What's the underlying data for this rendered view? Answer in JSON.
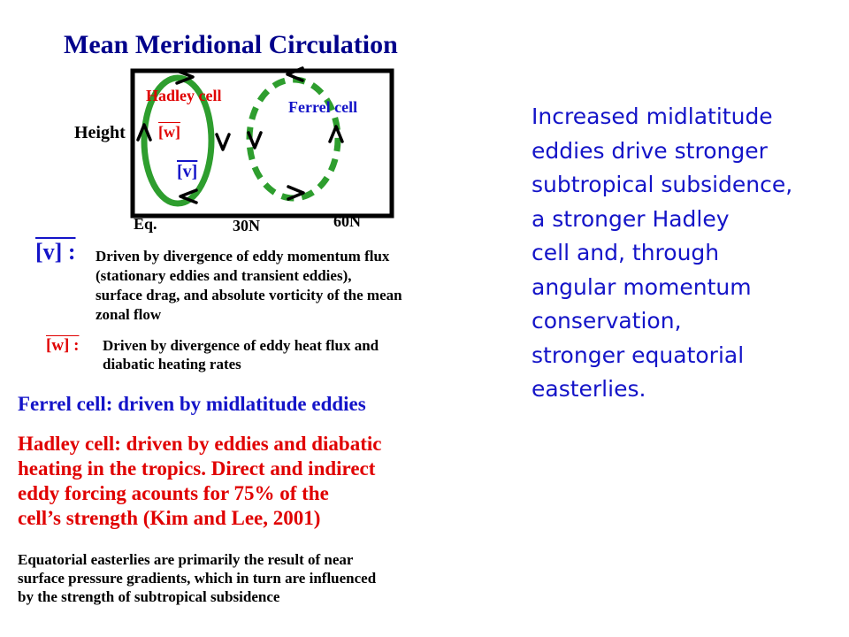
{
  "title": "Mean Meridional Circulation",
  "diagram": {
    "hadley_label": "Hadley cell",
    "ferrel_label": "Ferrel cell",
    "height_label": "Height",
    "w_symbol": "[w]",
    "v_symbol": "[v]",
    "x_labels": {
      "equator": "Eq.",
      "mid": "30N",
      "high": "60N"
    },
    "colors": {
      "hadley": "#2e9e2e",
      "ferrel": "#2e9e2e",
      "red_text": "#e00000",
      "blue_text": "#1414c8"
    }
  },
  "v_explanation": {
    "symbol": "[v] :",
    "lines": [
      "Driven by divergence of eddy momentum flux",
      "(stationary eddies and transient eddies),",
      "surface drag, and absolute vorticity of the mean",
      "zonal flow"
    ]
  },
  "w_explanation": {
    "symbol": "[w]  :",
    "lines": [
      "Driven by divergence of eddy heat flux and",
      "diabatic heating rates"
    ]
  },
  "ferrel_statement": "Ferrel cell:  driven by midlatitude eddies",
  "hadley_statement": {
    "lines": [
      "Hadley cell: driven by eddies and diabatic",
      "heating in the tropics.  Direct and indirect",
      "eddy forcing acounts for 75% of the",
      "cell’s strength (Kim and Lee, 2001)"
    ]
  },
  "easterlies_statement": {
    "lines": [
      "Equatorial easterlies are primarily the result of near",
      "surface pressure gradients, which in turn are influenced",
      "by the strength of subtropical subsidence"
    ]
  },
  "side_note": {
    "lines": [
      "Increased midlatitude",
      "eddies drive stronger",
      "subtropical subsidence,",
      "a stronger Hadley",
      "cell and, through",
      "angular momentum",
      "conservation,",
      "stronger equatorial",
      "easterlies."
    ]
  }
}
